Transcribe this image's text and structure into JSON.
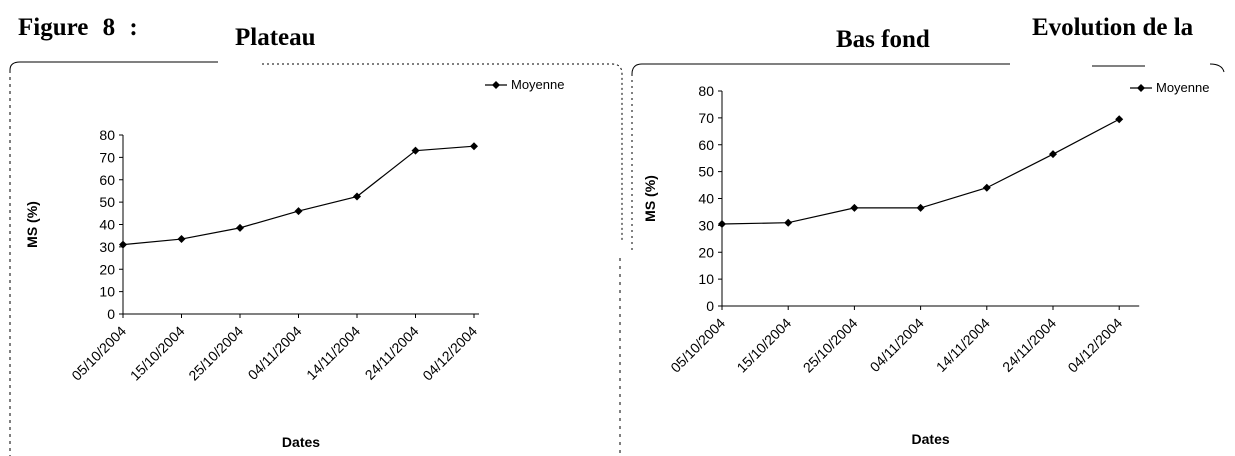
{
  "header": {
    "figure_label": "Figure 8 :",
    "trailing_text": "Evolution de la"
  },
  "chart_data": [
    {
      "type": "line",
      "title": "Plateau",
      "xlabel": "Dates",
      "ylabel": "MS (%)",
      "categories": [
        "05/10/2004",
        "15/10/2004",
        "25/10/2004",
        "04/11/2004",
        "14/11/2004",
        "24/11/2004",
        "04/12/2004"
      ],
      "yticks": [
        "0",
        "10",
        "20",
        "30",
        "40",
        "50",
        "60",
        "70",
        "80"
      ],
      "ylim": [
        0,
        80
      ],
      "series": [
        {
          "name": "Moyenne",
          "values": [
            31,
            33.5,
            38.5,
            46,
            52.5,
            73,
            75
          ],
          "color": "#000000"
        }
      ],
      "legend": "top-right",
      "grid": false
    },
    {
      "type": "line",
      "title": "Bas fond",
      "xlabel": "Dates",
      "ylabel": "MS (%)",
      "categories": [
        "05/10/2004",
        "15/10/2004",
        "25/10/2004",
        "04/11/2004",
        "14/11/2004",
        "24/11/2004",
        "04/12/2004"
      ],
      "yticks": [
        "0",
        "10",
        "20",
        "30",
        "40",
        "50",
        "60",
        "70",
        "80"
      ],
      "ylim": [
        0,
        80
      ],
      "series": [
        {
          "name": "Moyenne",
          "values": [
            30.5,
            31,
            36.5,
            36.5,
            44,
            56.5,
            69.5
          ],
          "color": "#000000"
        }
      ],
      "legend": "top-right",
      "grid": false
    }
  ]
}
